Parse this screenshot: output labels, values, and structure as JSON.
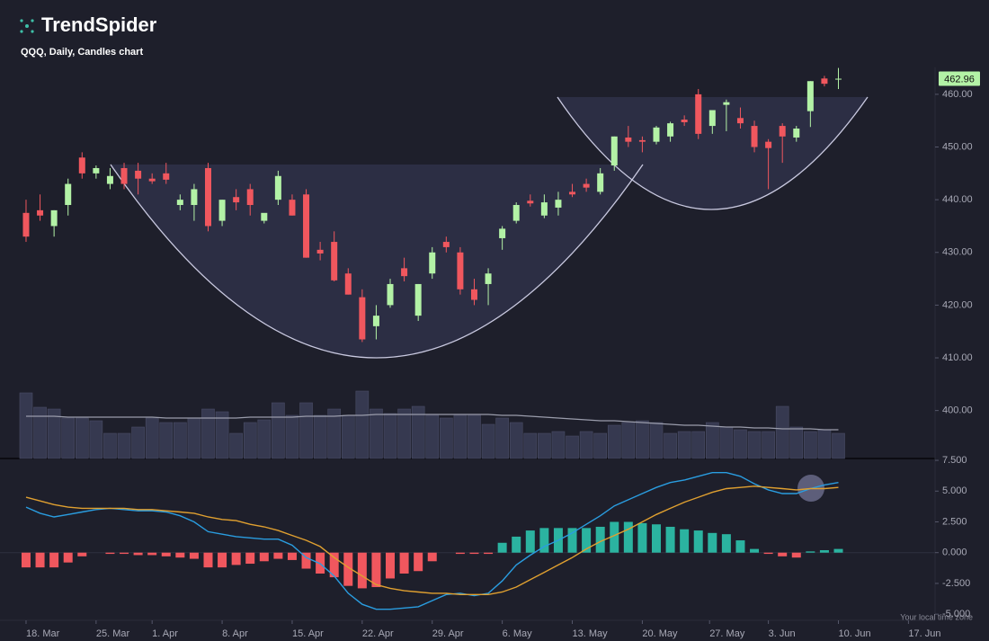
{
  "brand": "TrendSpider",
  "chart_data": {
    "type": "candlestick",
    "title": "QQQ, Daily, Candles chart",
    "up_color": "#b3f2a6",
    "down_color": "#f0575e",
    "open": [
      437.5,
      438,
      435,
      439,
      448,
      445,
      443,
      446,
      445.5,
      444,
      445,
      439,
      439,
      446,
      436,
      440.5,
      442,
      436,
      440,
      440,
      441,
      430.5,
      432,
      426,
      421.5,
      416,
      420,
      427,
      418,
      426,
      432,
      430,
      423,
      424,
      432.7,
      436,
      439.8,
      437,
      438.5,
      441.5,
      443,
      441.5,
      446.5,
      451.8,
      451.3,
      451,
      452,
      455.2,
      460,
      454,
      458,
      455.5,
      454,
      451,
      454,
      451.8,
      456.8,
      463,
      462.8
    ],
    "high": [
      440,
      441,
      438,
      444,
      449,
      446.5,
      446,
      447,
      447,
      445,
      447,
      441,
      443,
      447,
      440,
      442,
      443,
      437,
      445.5,
      441,
      442,
      432,
      434,
      427,
      423,
      420,
      425,
      429,
      424,
      431,
      433,
      431,
      425,
      427,
      435,
      439.5,
      441,
      441,
      441.5,
      443,
      444,
      446,
      452,
      454,
      452,
      454,
      454.8,
      456,
      461,
      457,
      459,
      457.5,
      455,
      451.5,
      454.5,
      454,
      462.5,
      463.5,
      465
    ],
    "low": [
      432,
      436,
      433,
      437,
      444,
      444,
      442,
      442,
      441,
      443,
      443,
      438,
      436,
      434,
      435,
      438,
      437,
      435.5,
      439,
      437,
      429,
      428.5,
      424.5,
      422,
      413,
      413.5,
      419.5,
      424.5,
      417,
      425,
      430,
      422,
      420,
      420,
      430.5,
      435.5,
      438.7,
      436.5,
      437,
      440.5,
      441.5,
      441,
      445.5,
      450,
      449,
      450.5,
      451,
      454,
      451.5,
      452.5,
      453,
      453.5,
      449,
      442,
      447,
      451,
      453.8,
      461.5,
      461
    ],
    "close": [
      433,
      437,
      438,
      443,
      445,
      446,
      444.5,
      443,
      444,
      443.5,
      443.8,
      440,
      442,
      435,
      440,
      439.5,
      439,
      437.5,
      444.5,
      437,
      429,
      429.8,
      424.7,
      422,
      413.5,
      418,
      424,
      425.5,
      424,
      430,
      431,
      423,
      421,
      426,
      434.5,
      439,
      439.3,
      439.5,
      440,
      441,
      442.3,
      445,
      452,
      451,
      451,
      453.7,
      454.5,
      454.7,
      452.5,
      457,
      458.5,
      454.5,
      450,
      449.8,
      452,
      453.5,
      462.5,
      462,
      462.96
    ],
    "xlim": [
      -1.86,
      64.9
    ],
    "xticks": [
      {
        "value": 0,
        "label": "18. Mar"
      },
      {
        "value": 5,
        "label": "25. Mar"
      },
      {
        "value": 9,
        "label": "1. Apr"
      },
      {
        "value": 14,
        "label": "8. Apr"
      },
      {
        "value": 19,
        "label": "15. Apr"
      },
      {
        "value": 24,
        "label": "22. Apr"
      },
      {
        "value": 29,
        "label": "29. Apr"
      },
      {
        "value": 34,
        "label": "6. May"
      },
      {
        "value": 39,
        "label": "13. May"
      },
      {
        "value": 44,
        "label": "20. May"
      },
      {
        "value": 48.8,
        "label": "27. May"
      },
      {
        "value": 53,
        "label": "3. Jun"
      },
      {
        "value": 58,
        "label": "10. Jun"
      },
      {
        "value": 63,
        "label": "17. Jun"
      }
    ],
    "ylim": [
      390.9,
      465.1
    ],
    "yticks": [
      {
        "value": 400,
        "label": "400.00"
      },
      {
        "value": 410,
        "label": "410.00"
      },
      {
        "value": 420,
        "label": "420.00"
      },
      {
        "value": 430,
        "label": "430.00"
      },
      {
        "value": 440,
        "label": "440.00"
      },
      {
        "value": 450,
        "label": "450.00"
      },
      {
        "value": 460,
        "label": "460.00"
      }
    ],
    "grid": false,
    "volume": {
      "color": "#363950",
      "ma_color": "#9a9cab",
      "ylim": [
        0,
        80
      ],
      "values": [
        73,
        57,
        55,
        45,
        45,
        42,
        28,
        28,
        35,
        45,
        40,
        40,
        45,
        55,
        52,
        28,
        40,
        43,
        62,
        48,
        62,
        48,
        55,
        48,
        75,
        55,
        50,
        55,
        58,
        48,
        45,
        48,
        48,
        38,
        45,
        40,
        28,
        28,
        30,
        25,
        30,
        28,
        37,
        40,
        42,
        40,
        28,
        30,
        30,
        40,
        35,
        32,
        30,
        30,
        58,
        35,
        30,
        32,
        28
      ],
      "ma": [
        47,
        47,
        47,
        46,
        46,
        46,
        46,
        46,
        46,
        46,
        45,
        45,
        45,
        45,
        45,
        45,
        46,
        46,
        46,
        46,
        47,
        47,
        47,
        48,
        48,
        49,
        49,
        49,
        49,
        49,
        49,
        49,
        49,
        49,
        48,
        48,
        47,
        46,
        45,
        44,
        43,
        42,
        42,
        41,
        40,
        39,
        38,
        37,
        37,
        36,
        35,
        35,
        34,
        34,
        33,
        33,
        33,
        32,
        32
      ]
    },
    "macd": {
      "ylim": [
        -5.5,
        7.65
      ],
      "yticks": [
        {
          "value": 7.5,
          "label": "7.500"
        },
        {
          "value": 5,
          "label": "5.000"
        },
        {
          "value": 2.5,
          "label": "2.500"
        },
        {
          "value": 0,
          "label": "0.000"
        },
        {
          "value": -2.5,
          "label": "-2.500"
        },
        {
          "value": -5,
          "label": "-5.000"
        }
      ],
      "up_color": "#2bb3a0",
      "down_color": "#f0575e",
      "histogram": [
        -1.2,
        -1.2,
        -1.2,
        -0.8,
        -0.3,
        0,
        -0.1,
        -0.1,
        -0.2,
        -0.2,
        -0.3,
        -0.4,
        -0.5,
        -1.2,
        -1.2,
        -1.0,
        -0.9,
        -0.7,
        -0.5,
        -0.6,
        -1.3,
        -1.7,
        -2.0,
        -2.7,
        -2.9,
        -2.8,
        -2.1,
        -1.7,
        -1.5,
        -0.7,
        0,
        -0.1,
        -0.1,
        -0.1,
        0.8,
        1.3,
        1.8,
        2.0,
        2.0,
        2.0,
        2.0,
        2.1,
        2.5,
        2.5,
        2.4,
        2.3,
        2.1,
        1.9,
        1.8,
        1.6,
        1.5,
        1.0,
        0.3,
        -0.1,
        -0.3,
        -0.4,
        0.1,
        0.2,
        0.3
      ],
      "series": [
        {
          "color": "#2a9de0",
          "values": [
            3.7,
            3.2,
            2.9,
            3.1,
            3.3,
            3.5,
            3.6,
            3.5,
            3.4,
            3.4,
            3.3,
            3.0,
            2.5,
            1.7,
            1.5,
            1.3,
            1.2,
            1.1,
            1.1,
            0.6,
            -0.4,
            -0.9,
            -1.9,
            -3.3,
            -4.2,
            -4.6,
            -4.6,
            -4.5,
            -4.4,
            -3.9,
            -3.4,
            -3.3,
            -3.5,
            -3.3,
            -2.3,
            -1.0,
            -0.2,
            0.5,
            1.0,
            1.6,
            2.3,
            3.0,
            3.8,
            4.3,
            4.8,
            5.3,
            5.7,
            5.9,
            6.2,
            6.5,
            6.5,
            6.2,
            5.6,
            5.1,
            4.8,
            4.8,
            5.2,
            5.5,
            5.7
          ]
        },
        {
          "color": "#e0a030",
          "values": [
            4.5,
            4.2,
            3.9,
            3.7,
            3.6,
            3.6,
            3.6,
            3.6,
            3.5,
            3.5,
            3.4,
            3.3,
            3.2,
            2.9,
            2.7,
            2.6,
            2.3,
            2.1,
            1.8,
            1.4,
            1.0,
            0.5,
            -0.4,
            -1.2,
            -1.9,
            -2.6,
            -2.9,
            -3.1,
            -3.2,
            -3.3,
            -3.3,
            -3.4,
            -3.4,
            -3.4,
            -3.2,
            -2.8,
            -2.2,
            -1.6,
            -1.0,
            -0.4,
            0.3,
            0.9,
            1.4,
            1.9,
            2.5,
            3.1,
            3.6,
            4.1,
            4.5,
            4.9,
            5.2,
            5.3,
            5.4,
            5.3,
            5.2,
            5.1,
            5.2,
            5.2,
            5.3
          ]
        }
      ]
    },
    "footnote": "Your local time zone"
  }
}
